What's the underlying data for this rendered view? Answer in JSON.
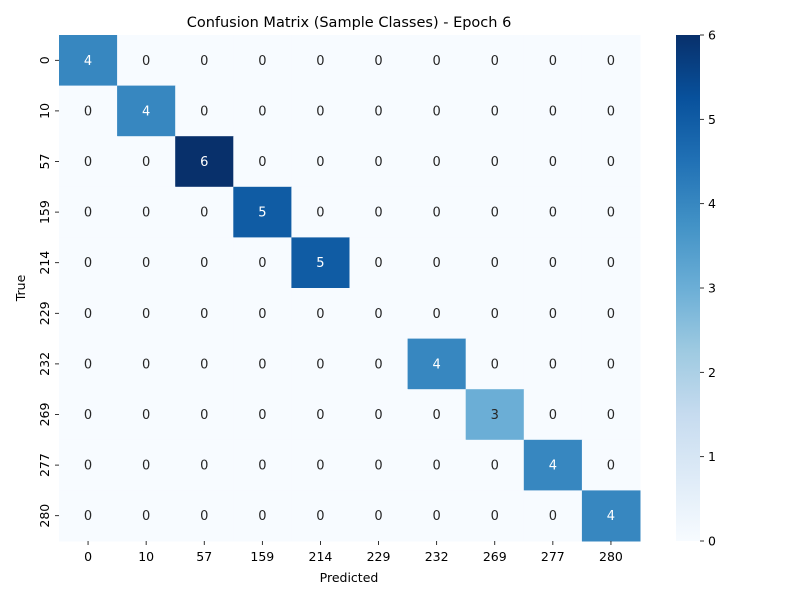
{
  "chart_data": {
    "type": "heatmap",
    "title": "Confusion Matrix (Sample Classes) - Epoch 6",
    "xlabel": "Predicted",
    "ylabel": "True",
    "x_categories": [
      "0",
      "10",
      "57",
      "159",
      "214",
      "229",
      "232",
      "269",
      "277",
      "280"
    ],
    "y_categories": [
      "0",
      "10",
      "57",
      "159",
      "214",
      "229",
      "232",
      "269",
      "277",
      "280"
    ],
    "matrix": [
      [
        4,
        0,
        0,
        0,
        0,
        0,
        0,
        0,
        0,
        0
      ],
      [
        0,
        4,
        0,
        0,
        0,
        0,
        0,
        0,
        0,
        0
      ],
      [
        0,
        0,
        6,
        0,
        0,
        0,
        0,
        0,
        0,
        0
      ],
      [
        0,
        0,
        0,
        5,
        0,
        0,
        0,
        0,
        0,
        0
      ],
      [
        0,
        0,
        0,
        0,
        5,
        0,
        0,
        0,
        0,
        0
      ],
      [
        0,
        0,
        0,
        0,
        0,
        0,
        0,
        0,
        0,
        0
      ],
      [
        0,
        0,
        0,
        0,
        0,
        0,
        4,
        0,
        0,
        0
      ],
      [
        0,
        0,
        0,
        0,
        0,
        0,
        0,
        3,
        0,
        0
      ],
      [
        0,
        0,
        0,
        0,
        0,
        0,
        0,
        0,
        4,
        0
      ],
      [
        0,
        0,
        0,
        0,
        0,
        0,
        0,
        0,
        0,
        4
      ]
    ],
    "value_range": [
      0,
      6
    ],
    "colorbar_ticks": [
      "0",
      "1",
      "2",
      "3",
      "4",
      "5",
      "6"
    ],
    "colormap": "Blues",
    "colors": {
      "low": "#f7fbff",
      "high": "#08306b"
    }
  }
}
